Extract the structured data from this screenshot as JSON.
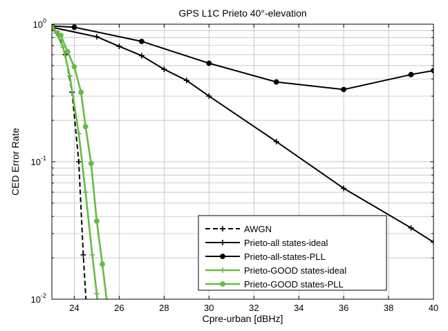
{
  "chart_data": {
    "type": "line",
    "title": "GPS L1C Prieto 40°-elevation",
    "xlabel": "Cpre-urban [dBHz]",
    "ylabel": "CED Error Rate",
    "xlim": [
      23,
      40
    ],
    "ylim": [
      0.01,
      1
    ],
    "y_scale": "log",
    "grid": true,
    "legend_position": "bottom-right",
    "x_ticks": [
      "24",
      "26",
      "28",
      "30",
      "32",
      "34",
      "36",
      "38",
      "40"
    ],
    "y_ticks": [
      {
        "base": "10",
        "exp": "0",
        "value": 1
      },
      {
        "base": "10",
        "exp": "-1",
        "value": 0.1
      },
      {
        "base": "10",
        "exp": "-2",
        "value": 0.01
      }
    ],
    "series": [
      {
        "name": "AWGN",
        "color": "#000000",
        "dashed": true,
        "marker": "plus",
        "points": [
          [
            23,
            0.95
          ],
          [
            23.3,
            0.85
          ],
          [
            23.6,
            0.6
          ],
          [
            23.9,
            0.32
          ],
          [
            24.2,
            0.1
          ],
          [
            24.4,
            0.021
          ],
          [
            24.6,
            0.006
          ]
        ]
      },
      {
        "name": "Prieto-all states-ideal",
        "color": "#000000",
        "dashed": false,
        "marker": "plus",
        "points": [
          [
            23,
            0.95
          ],
          [
            25,
            0.81
          ],
          [
            26,
            0.69
          ],
          [
            27,
            0.59
          ],
          [
            28,
            0.47
          ],
          [
            29,
            0.39
          ],
          [
            30,
            0.3
          ],
          [
            33,
            0.14
          ],
          [
            36,
            0.064
          ],
          [
            39,
            0.033
          ],
          [
            40,
            0.026
          ]
        ]
      },
      {
        "name": "Prieto-all-states-PLL",
        "color": "#000000",
        "dashed": false,
        "marker": "dot",
        "points": [
          [
            23,
            0.97
          ],
          [
            24,
            0.95
          ],
          [
            27,
            0.75
          ],
          [
            30,
            0.52
          ],
          [
            33,
            0.38
          ],
          [
            36,
            0.335
          ],
          [
            39,
            0.43
          ],
          [
            40,
            0.46
          ]
        ]
      },
      {
        "name": "Prieto-GOOD states-ideal",
        "color": "#66bb44",
        "dashed": false,
        "marker": "plus",
        "points": [
          [
            23,
            0.93
          ],
          [
            23.2,
            0.86
          ],
          [
            23.5,
            0.68
          ],
          [
            23.8,
            0.42
          ],
          [
            24.2,
            0.16
          ],
          [
            24.5,
            0.06
          ],
          [
            24.8,
            0.021
          ],
          [
            25,
            0.011
          ],
          [
            25.2,
            0.005
          ]
        ]
      },
      {
        "name": "Prieto-GOOD states-PLL",
        "color": "#66bb44",
        "dashed": false,
        "marker": "dot",
        "points": [
          [
            23,
            0.95
          ],
          [
            23.4,
            0.83
          ],
          [
            23.7,
            0.63
          ],
          [
            24,
            0.49
          ],
          [
            24.3,
            0.32
          ],
          [
            24.5,
            0.18
          ],
          [
            24.75,
            0.097
          ],
          [
            25,
            0.037
          ],
          [
            25.25,
            0.018
          ],
          [
            25.6,
            0.006
          ]
        ]
      }
    ]
  }
}
